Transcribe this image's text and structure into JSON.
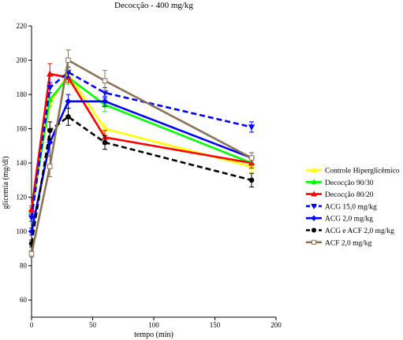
{
  "chart_data": {
    "type": "line",
    "title": "Decocção - 400 mg/kg",
    "xlabel": "tempo (min)",
    "ylabel": "glicemia (mg/dl)",
    "xlim": [
      0,
      200
    ],
    "ylim": [
      50,
      220
    ],
    "xticks": [
      0,
      50,
      100,
      150,
      200
    ],
    "yticks": [
      60,
      80,
      100,
      120,
      140,
      160,
      180,
      200,
      220
    ],
    "grid": false,
    "legend_position": "right",
    "series": [
      {
        "name": "Controle Hiperglicêmico",
        "color": "#ffff00",
        "dash": "solid",
        "marker": "triangle-up",
        "x": [
          0,
          15,
          30,
          60,
          180
        ],
        "y": [
          113,
          175,
          192,
          160,
          138
        ],
        "err": [
          2,
          3,
          3,
          3,
          3
        ]
      },
      {
        "name": "Decocção 90/30",
        "color": "#00ff00",
        "dash": "solid",
        "marker": "triangle-up",
        "x": [
          0,
          15,
          30,
          60,
          180
        ],
        "y": [
          112,
          177,
          190,
          174,
          140
        ],
        "err": [
          2,
          4,
          4,
          4,
          3
        ]
      },
      {
        "name": "Decocção 80/20",
        "color": "#ff0000",
        "dash": "solid",
        "marker": "triangle-up",
        "x": [
          0,
          15,
          30,
          60,
          180
        ],
        "y": [
          113,
          192,
          190,
          155,
          140
        ],
        "err": [
          2,
          6,
          3,
          4,
          3
        ]
      },
      {
        "name": "ACG 15,0 mg/kg",
        "color": "#0000ff",
        "dash": "dashed",
        "marker": "triangle-down",
        "x": [
          0,
          15,
          30,
          60,
          180
        ],
        "y": [
          108,
          184,
          193,
          181,
          161
        ],
        "err": [
          2,
          3,
          3,
          3,
          3
        ]
      },
      {
        "name": "ACG 2,0 mg/kg",
        "color": "#0000ff",
        "dash": "solid",
        "marker": "diamond",
        "x": [
          0,
          15,
          30,
          60,
          180
        ],
        "y": [
          100,
          152,
          176,
          176,
          143
        ],
        "err": [
          2,
          8,
          4,
          3,
          3
        ]
      },
      {
        "name": "ACG e ACF 2,0 mg/kg",
        "color": "#000000",
        "dash": "dashed",
        "marker": "circle",
        "x": [
          0,
          15,
          30,
          60,
          180
        ],
        "y": [
          93,
          159,
          167,
          152,
          130
        ],
        "err": [
          2,
          5,
          5,
          4,
          4
        ]
      },
      {
        "name": "ACF 2,0 mg/kg",
        "color": "#8b7355",
        "dash": "solid",
        "marker": "square",
        "x": [
          0,
          15,
          30,
          60,
          180
        ],
        "y": [
          87,
          138,
          200,
          188,
          143
        ],
        "err": [
          2,
          6,
          6,
          6,
          3
        ]
      }
    ]
  }
}
